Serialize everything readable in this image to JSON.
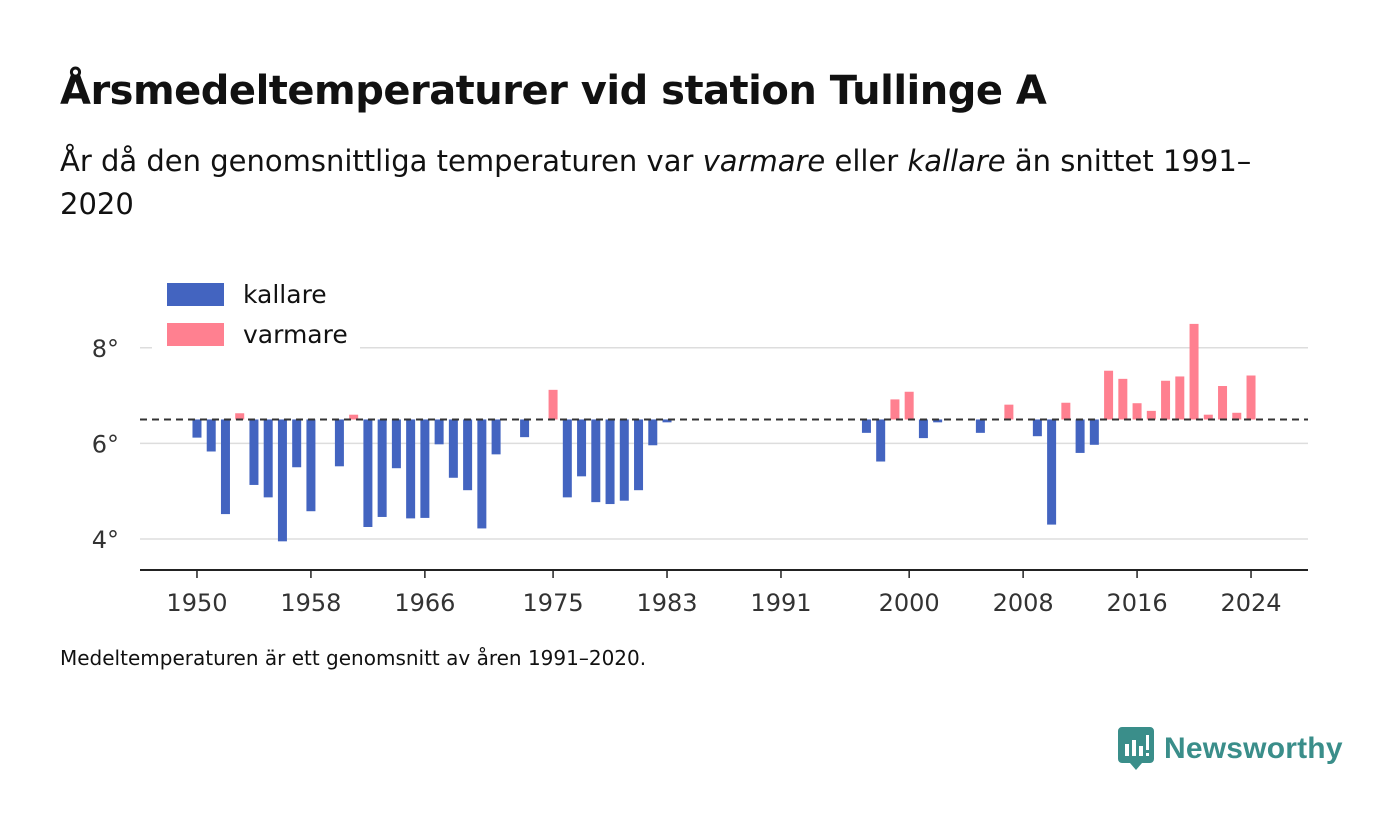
{
  "title": "Årsmedeltemperaturer vid station Tullinge A",
  "subtitle": {
    "part1": "År då den genomsnittliga temperaturen var ",
    "warm": "varmare",
    "part2": " eller ",
    "cold": "kallare",
    "part3": " än snittet 1991–2020"
  },
  "note": "Medeltemperaturen är ett genomsnitt av åren 1991–2020.",
  "brand": {
    "name": "Newsworthy"
  },
  "chart_data": {
    "type": "bar",
    "title": "Årsmedeltemperaturer vid station Tullinge A",
    "baseline": 6.5,
    "xlim": [
      1946,
      2028
    ],
    "ylim": [
      3.35,
      9.0
    ],
    "x_ticks": [
      1950,
      1958,
      1966,
      1975,
      1983,
      1991,
      2000,
      2008,
      2016,
      2024
    ],
    "y_ticks": [
      4,
      6,
      8
    ],
    "y_tick_suffix": "°",
    "legend_position": "top-left",
    "colors": {
      "kallare": "#4364c0",
      "varmare": "#ff8090",
      "baseline": "#333333",
      "grid": "#dddddd",
      "axis": "#222222"
    },
    "series": [
      {
        "name": "kallare",
        "points": [
          [
            1950,
            6.12
          ],
          [
            1951,
            5.83
          ],
          [
            1952,
            4.52
          ],
          [
            1954,
            5.13
          ],
          [
            1955,
            4.87
          ],
          [
            1956,
            3.95
          ],
          [
            1957,
            5.5
          ],
          [
            1958,
            4.58
          ],
          [
            1960,
            5.52
          ],
          [
            1962,
            4.25
          ],
          [
            1963,
            4.46
          ],
          [
            1964,
            5.48
          ],
          [
            1965,
            4.43
          ],
          [
            1966,
            4.44
          ],
          [
            1967,
            5.98
          ],
          [
            1968,
            5.28
          ],
          [
            1969,
            5.02
          ],
          [
            1970,
            4.22
          ],
          [
            1971,
            5.77
          ],
          [
            1973,
            6.13
          ],
          [
            1976,
            4.87
          ],
          [
            1977,
            5.31
          ],
          [
            1978,
            4.77
          ],
          [
            1979,
            4.73
          ],
          [
            1980,
            4.8
          ],
          [
            1981,
            5.02
          ],
          [
            1982,
            5.96
          ],
          [
            1983,
            6.44
          ],
          [
            1997,
            6.22
          ],
          [
            1998,
            5.62
          ],
          [
            2001,
            6.11
          ],
          [
            2002,
            6.44
          ],
          [
            2005,
            6.22
          ],
          [
            2009,
            6.15
          ],
          [
            2010,
            4.3
          ],
          [
            2012,
            5.8
          ],
          [
            2013,
            5.97
          ]
        ]
      },
      {
        "name": "varmare",
        "points": [
          [
            1953,
            6.63
          ],
          [
            1961,
            6.6
          ],
          [
            1975,
            7.12
          ],
          [
            1999,
            6.92
          ],
          [
            2000,
            7.08
          ],
          [
            2007,
            6.81
          ],
          [
            2011,
            6.85
          ],
          [
            2014,
            7.52
          ],
          [
            2015,
            7.35
          ],
          [
            2016,
            6.84
          ],
          [
            2017,
            6.68
          ],
          [
            2018,
            7.31
          ],
          [
            2019,
            7.4
          ],
          [
            2020,
            8.5
          ],
          [
            2021,
            6.6
          ],
          [
            2022,
            7.2
          ],
          [
            2023,
            6.64
          ],
          [
            2024,
            7.42
          ]
        ]
      }
    ]
  }
}
